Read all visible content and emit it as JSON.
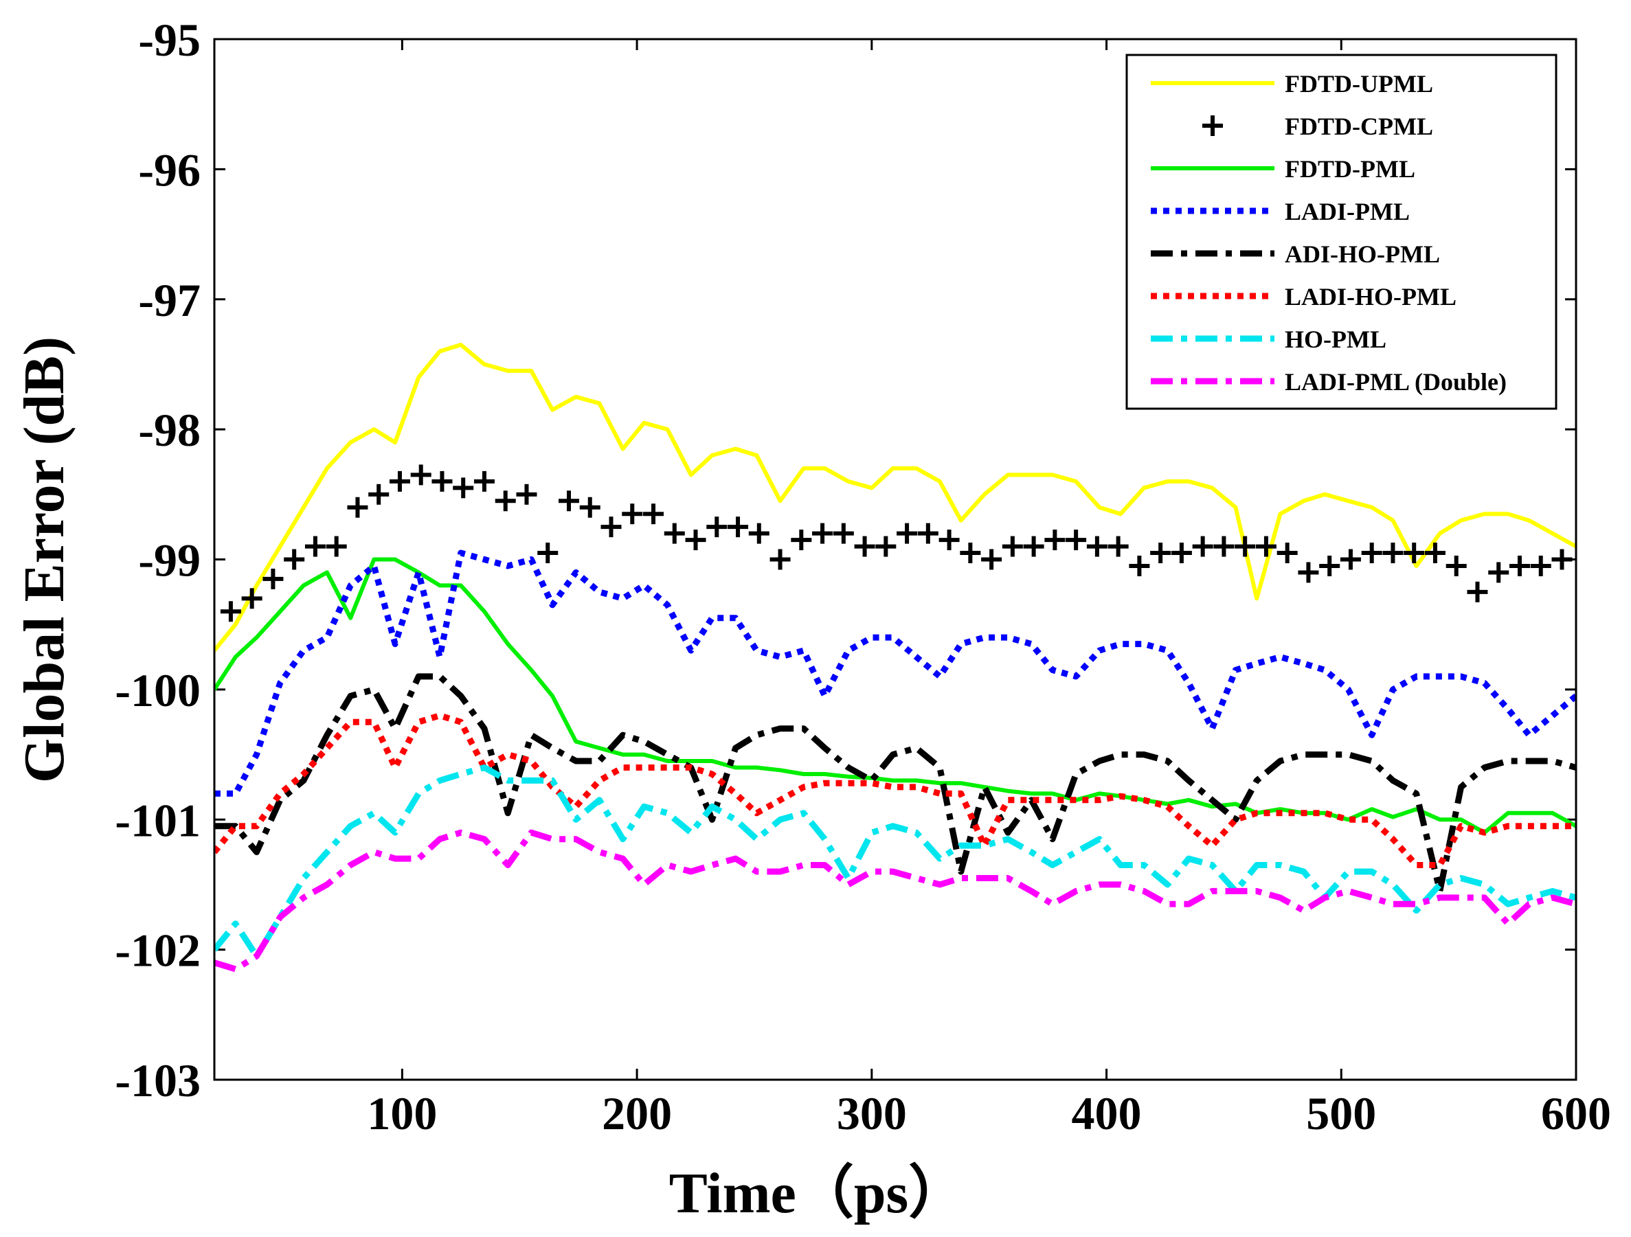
{
  "chart_data": {
    "type": "line",
    "title": "",
    "xlabel": "Time（ps）",
    "ylabel": "Global Error (dB)",
    "xlim": [
      20,
      600
    ],
    "ylim": [
      -103,
      -95
    ],
    "x_ticks": [
      100,
      200,
      300,
      400,
      500,
      600
    ],
    "y_ticks": [
      -103,
      -102,
      -101,
      -100,
      -99,
      -98,
      -97,
      -96,
      -95
    ],
    "x_tick_labels": [
      "100",
      "200",
      "300",
      "400",
      "500",
      "600"
    ],
    "y_tick_labels": [
      "-103",
      "-102",
      "-101",
      "-100",
      "-99",
      "-98",
      "-97",
      "-96",
      "-95"
    ],
    "grid": false,
    "legend_position": "top-right",
    "series": [
      {
        "name": "FDTD-UPML",
        "color": "#ffff00",
        "style": "solid",
        "x": [
          20,
          29,
          38,
          48,
          58,
          68,
          78,
          88,
          97,
          107,
          116,
          125,
          135,
          145,
          155,
          164,
          174,
          184,
          194,
          203,
          213,
          223,
          232,
          242,
          251,
          261,
          271,
          280,
          290,
          300,
          309,
          319,
          329,
          338,
          348,
          358,
          368,
          377,
          387,
          397,
          406,
          416,
          426,
          435,
          445,
          455,
          464,
          474,
          484,
          493,
          503,
          513,
          522,
          532,
          542,
          551,
          561,
          571,
          580,
          590,
          600
        ],
        "y": [
          -99.7,
          -99.5,
          -99.2,
          -98.9,
          -98.6,
          -98.3,
          -98.1,
          -98.0,
          -98.1,
          -97.6,
          -97.4,
          -97.35,
          -97.5,
          -97.55,
          -97.55,
          -97.85,
          -97.75,
          -97.8,
          -98.15,
          -97.95,
          -98.0,
          -98.35,
          -98.2,
          -98.15,
          -98.2,
          -98.55,
          -98.3,
          -98.3,
          -98.4,
          -98.45,
          -98.3,
          -98.3,
          -98.4,
          -98.7,
          -98.5,
          -98.35,
          -98.35,
          -98.35,
          -98.4,
          -98.6,
          -98.65,
          -98.45,
          -98.4,
          -98.4,
          -98.45,
          -98.6,
          -99.3,
          -98.65,
          -98.55,
          -98.5,
          -98.55,
          -98.6,
          -98.7,
          -99.05,
          -98.8,
          -98.7,
          -98.65,
          -98.65,
          -98.7,
          -98.8,
          -98.9
        ]
      },
      {
        "name": "FDTD-CPML",
        "color": "#000000",
        "style": "plus",
        "x": [
          27,
          36,
          45,
          54,
          63,
          72,
          81,
          90,
          99,
          108,
          117,
          126,
          135,
          144,
          153,
          162,
          171,
          180,
          189,
          198,
          207,
          216,
          225,
          234,
          243,
          252,
          261,
          270,
          279,
          288,
          297,
          306,
          315,
          324,
          333,
          342,
          351,
          360,
          369,
          378,
          387,
          396,
          405,
          414,
          423,
          432,
          441,
          450,
          459,
          468,
          477,
          486,
          495,
          504,
          513,
          522,
          531,
          540,
          549,
          558,
          567,
          576,
          585,
          594
        ],
        "y": [
          -99.4,
          -99.3,
          -99.15,
          -99.0,
          -98.9,
          -98.9,
          -98.6,
          -98.5,
          -98.4,
          -98.35,
          -98.4,
          -98.45,
          -98.4,
          -98.55,
          -98.5,
          -98.95,
          -98.55,
          -98.6,
          -98.75,
          -98.65,
          -98.65,
          -98.8,
          -98.85,
          -98.75,
          -98.75,
          -98.8,
          -99.0,
          -98.85,
          -98.8,
          -98.8,
          -98.9,
          -98.9,
          -98.8,
          -98.8,
          -98.85,
          -98.95,
          -99.0,
          -98.9,
          -98.9,
          -98.85,
          -98.85,
          -98.9,
          -98.9,
          -99.05,
          -98.95,
          -98.95,
          -98.9,
          -98.9,
          -98.9,
          -98.9,
          -98.95,
          -99.1,
          -99.05,
          -99.0,
          -98.95,
          -98.95,
          -98.95,
          -98.95,
          -99.05,
          -99.25,
          -99.1,
          -99.05,
          -99.05,
          -99.0
        ]
      },
      {
        "name": "FDTD-PML",
        "color": "#00ee00",
        "style": "solid",
        "x": [
          20,
          29,
          38,
          48,
          58,
          68,
          78,
          88,
          97,
          107,
          116,
          125,
          135,
          145,
          155,
          164,
          174,
          184,
          194,
          203,
          213,
          223,
          232,
          242,
          251,
          261,
          271,
          280,
          290,
          300,
          309,
          319,
          329,
          338,
          348,
          358,
          368,
          377,
          387,
          397,
          406,
          416,
          426,
          435,
          445,
          455,
          464,
          474,
          484,
          493,
          503,
          513,
          522,
          532,
          542,
          551,
          561,
          571,
          580,
          590,
          600
        ],
        "y": [
          -100.0,
          -99.75,
          -99.6,
          -99.4,
          -99.2,
          -99.1,
          -99.45,
          -99.0,
          -99.0,
          -99.1,
          -99.2,
          -99.2,
          -99.4,
          -99.65,
          -99.85,
          -100.05,
          -100.4,
          -100.45,
          -100.5,
          -100.5,
          -100.55,
          -100.55,
          -100.55,
          -100.6,
          -100.6,
          -100.62,
          -100.65,
          -100.65,
          -100.67,
          -100.68,
          -100.7,
          -100.7,
          -100.72,
          -100.72,
          -100.75,
          -100.78,
          -100.8,
          -100.8,
          -100.85,
          -100.8,
          -100.82,
          -100.85,
          -100.88,
          -100.85,
          -100.9,
          -100.88,
          -100.95,
          -100.92,
          -100.95,
          -100.95,
          -101.0,
          -100.92,
          -100.98,
          -100.92,
          -101.0,
          -101.0,
          -101.1,
          -100.95,
          -100.95,
          -100.95,
          -101.05
        ]
      },
      {
        "name": "LADI-PML",
        "color": "#0000ff",
        "style": "dotted",
        "x": [
          20,
          29,
          38,
          48,
          58,
          68,
          78,
          88,
          97,
          107,
          116,
          125,
          135,
          145,
          155,
          164,
          174,
          184,
          194,
          203,
          213,
          223,
          232,
          242,
          251,
          261,
          271,
          280,
          290,
          300,
          309,
          319,
          329,
          338,
          348,
          358,
          368,
          377,
          387,
          397,
          406,
          416,
          426,
          435,
          445,
          455,
          464,
          474,
          484,
          493,
          503,
          513,
          522,
          532,
          542,
          551,
          561,
          571,
          580,
          590,
          600
        ],
        "y": [
          -100.8,
          -100.8,
          -100.5,
          -99.95,
          -99.7,
          -99.6,
          -99.2,
          -99.05,
          -99.65,
          -99.1,
          -99.75,
          -98.95,
          -99.0,
          -99.05,
          -99.0,
          -99.35,
          -99.1,
          -99.25,
          -99.3,
          -99.2,
          -99.35,
          -99.7,
          -99.45,
          -99.45,
          -99.7,
          -99.75,
          -99.7,
          -100.05,
          -99.7,
          -99.6,
          -99.6,
          -99.75,
          -99.9,
          -99.65,
          -99.6,
          -99.6,
          -99.65,
          -99.85,
          -99.9,
          -99.7,
          -99.65,
          -99.65,
          -99.7,
          -99.95,
          -100.3,
          -99.85,
          -99.8,
          -99.75,
          -99.8,
          -99.85,
          -100.0,
          -100.35,
          -100.0,
          -99.9,
          -99.9,
          -99.9,
          -99.95,
          -100.15,
          -100.35,
          -100.2,
          -100.05
        ]
      },
      {
        "name": "ADI-HO-PML",
        "color": "#000000",
        "style": "dashdot",
        "x": [
          20,
          29,
          38,
          48,
          58,
          68,
          78,
          88,
          97,
          107,
          116,
          125,
          135,
          145,
          155,
          164,
          174,
          184,
          194,
          203,
          213,
          223,
          232,
          242,
          251,
          261,
          271,
          280,
          290,
          300,
          309,
          319,
          329,
          338,
          348,
          358,
          368,
          377,
          387,
          397,
          406,
          416,
          426,
          435,
          445,
          455,
          464,
          474,
          484,
          493,
          503,
          513,
          522,
          532,
          542,
          551,
          561,
          571,
          580,
          590,
          600
        ],
        "y": [
          -101.05,
          -101.05,
          -101.25,
          -100.85,
          -100.7,
          -100.35,
          -100.05,
          -100.0,
          -100.3,
          -99.9,
          -99.9,
          -100.05,
          -100.3,
          -100.95,
          -100.35,
          -100.45,
          -100.55,
          -100.55,
          -100.35,
          -100.4,
          -100.5,
          -100.6,
          -101.0,
          -100.45,
          -100.35,
          -100.3,
          -100.3,
          -100.45,
          -100.6,
          -100.7,
          -100.5,
          -100.45,
          -100.6,
          -101.4,
          -100.75,
          -101.1,
          -100.85,
          -101.15,
          -100.65,
          -100.55,
          -100.5,
          -100.5,
          -100.55,
          -100.7,
          -100.85,
          -101.0,
          -100.7,
          -100.55,
          -100.5,
          -100.5,
          -100.5,
          -100.55,
          -100.7,
          -100.8,
          -101.55,
          -100.75,
          -100.6,
          -100.55,
          -100.55,
          -100.55,
          -100.6
        ]
      },
      {
        "name": "LADI-HO-PML",
        "color": "#ff0000",
        "style": "dotted",
        "x": [
          20,
          29,
          38,
          48,
          58,
          68,
          78,
          88,
          97,
          107,
          116,
          125,
          135,
          145,
          155,
          164,
          174,
          184,
          194,
          203,
          213,
          223,
          232,
          242,
          251,
          261,
          271,
          280,
          290,
          300,
          309,
          319,
          329,
          338,
          348,
          358,
          368,
          377,
          387,
          397,
          406,
          416,
          426,
          435,
          445,
          455,
          464,
          474,
          484,
          493,
          503,
          513,
          522,
          532,
          542,
          551,
          561,
          571,
          580,
          590,
          600
        ],
        "y": [
          -101.25,
          -101.05,
          -101.05,
          -100.8,
          -100.65,
          -100.45,
          -100.25,
          -100.25,
          -100.6,
          -100.25,
          -100.2,
          -100.25,
          -100.6,
          -100.5,
          -100.55,
          -100.75,
          -100.9,
          -100.7,
          -100.6,
          -100.6,
          -100.6,
          -100.6,
          -100.65,
          -100.8,
          -100.95,
          -100.85,
          -100.75,
          -100.72,
          -100.72,
          -100.72,
          -100.75,
          -100.75,
          -100.8,
          -100.8,
          -101.2,
          -100.85,
          -100.85,
          -100.85,
          -100.85,
          -100.85,
          -100.82,
          -100.85,
          -100.9,
          -101.05,
          -101.2,
          -101.0,
          -100.95,
          -100.95,
          -100.95,
          -100.95,
          -101.0,
          -101.0,
          -101.15,
          -101.35,
          -101.35,
          -101.05,
          -101.1,
          -101.05,
          -101.05,
          -101.05,
          -101.05
        ]
      },
      {
        "name": "HO-PML",
        "color": "#00e5ee",
        "style": "dashdot",
        "x": [
          20,
          29,
          38,
          48,
          58,
          68,
          78,
          88,
          97,
          107,
          116,
          125,
          135,
          145,
          155,
          164,
          174,
          184,
          194,
          203,
          213,
          223,
          232,
          242,
          251,
          261,
          271,
          280,
          290,
          300,
          309,
          319,
          329,
          338,
          348,
          358,
          368,
          377,
          387,
          397,
          406,
          416,
          426,
          435,
          445,
          455,
          464,
          474,
          484,
          493,
          503,
          513,
          522,
          532,
          542,
          551,
          561,
          571,
          580,
          590,
          600
        ],
        "y": [
          -102.0,
          -101.8,
          -102.05,
          -101.75,
          -101.45,
          -101.25,
          -101.05,
          -100.95,
          -101.1,
          -100.8,
          -100.7,
          -100.65,
          -100.6,
          -100.7,
          -100.7,
          -100.7,
          -101.0,
          -100.85,
          -101.15,
          -100.9,
          -100.95,
          -101.1,
          -100.9,
          -101.0,
          -101.15,
          -101.0,
          -100.95,
          -101.15,
          -101.45,
          -101.1,
          -101.05,
          -101.1,
          -101.3,
          -101.2,
          -101.2,
          -101.15,
          -101.25,
          -101.35,
          -101.25,
          -101.15,
          -101.35,
          -101.35,
          -101.5,
          -101.3,
          -101.35,
          -101.55,
          -101.35,
          -101.35,
          -101.4,
          -101.6,
          -101.4,
          -101.4,
          -101.5,
          -101.7,
          -101.5,
          -101.45,
          -101.5,
          -101.65,
          -101.6,
          -101.55,
          -101.6
        ]
      },
      {
        "name": "LADI-PML (Double)",
        "color": "#ff00ff",
        "style": "dashdot",
        "x": [
          20,
          29,
          38,
          48,
          58,
          68,
          78,
          88,
          97,
          107,
          116,
          125,
          135,
          145,
          155,
          164,
          174,
          184,
          194,
          203,
          213,
          223,
          232,
          242,
          251,
          261,
          271,
          280,
          290,
          300,
          309,
          319,
          329,
          338,
          348,
          358,
          368,
          377,
          387,
          397,
          406,
          416,
          426,
          435,
          445,
          455,
          464,
          474,
          484,
          493,
          503,
          513,
          522,
          532,
          542,
          551,
          561,
          571,
          580,
          590,
          600
        ],
        "y": [
          -102.1,
          -102.15,
          -102.05,
          -101.75,
          -101.6,
          -101.5,
          -101.35,
          -101.25,
          -101.3,
          -101.3,
          -101.15,
          -101.1,
          -101.15,
          -101.35,
          -101.1,
          -101.15,
          -101.15,
          -101.25,
          -101.3,
          -101.5,
          -101.35,
          -101.4,
          -101.35,
          -101.3,
          -101.4,
          -101.4,
          -101.35,
          -101.35,
          -101.5,
          -101.4,
          -101.4,
          -101.45,
          -101.5,
          -101.45,
          -101.45,
          -101.45,
          -101.55,
          -101.65,
          -101.55,
          -101.5,
          -101.5,
          -101.55,
          -101.65,
          -101.65,
          -101.55,
          -101.55,
          -101.55,
          -101.6,
          -101.7,
          -101.6,
          -101.55,
          -101.6,
          -101.65,
          -101.65,
          -101.6,
          -101.6,
          -101.6,
          -101.8,
          -101.65,
          -101.6,
          -101.65
        ]
      }
    ]
  }
}
